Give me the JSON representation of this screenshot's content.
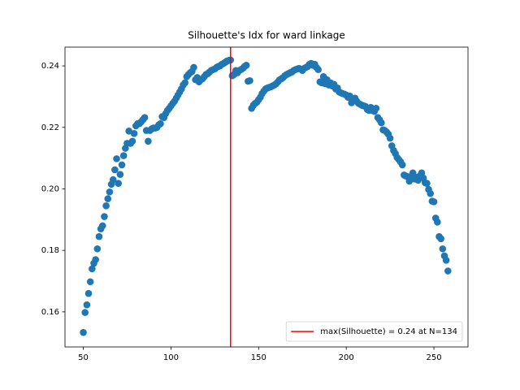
{
  "chart_data": {
    "type": "scatter",
    "title": "Silhouette's Idx for ward linkage",
    "x": [
      50,
      51,
      52,
      53,
      54,
      55,
      56,
      57,
      58,
      59,
      60,
      61,
      62,
      63,
      64,
      65,
      66,
      67,
      68,
      69,
      70,
      71,
      72,
      73,
      74,
      75,
      76,
      77,
      78,
      79,
      80,
      81,
      82,
      83,
      84,
      85,
      86,
      87,
      88,
      89,
      90,
      91,
      92,
      93,
      94,
      95,
      96,
      97,
      98,
      99,
      100,
      101,
      102,
      103,
      104,
      105,
      106,
      107,
      108,
      109,
      110,
      111,
      112,
      113,
      114,
      115,
      116,
      117,
      118,
      119,
      120,
      121,
      122,
      123,
      124,
      125,
      126,
      127,
      128,
      129,
      130,
      131,
      132,
      133,
      134,
      135,
      136,
      137,
      138,
      139,
      140,
      141,
      142,
      143,
      144,
      145,
      146,
      147,
      148,
      149,
      150,
      151,
      152,
      153,
      154,
      155,
      156,
      157,
      158,
      159,
      160,
      161,
      162,
      163,
      164,
      165,
      166,
      167,
      168,
      169,
      170,
      171,
      172,
      173,
      174,
      175,
      176,
      177,
      178,
      179,
      180,
      181,
      182,
      183,
      184,
      185,
      186,
      187,
      188,
      189,
      190,
      191,
      192,
      193,
      194,
      195,
      196,
      197,
      198,
      199,
      200,
      201,
      202,
      203,
      204,
      205,
      206,
      207,
      208,
      209,
      210,
      211,
      212,
      213,
      214,
      215,
      216,
      217,
      218,
      219,
      220,
      221,
      222,
      223,
      224,
      225,
      226,
      227,
      228,
      229,
      230,
      231,
      232,
      233,
      234,
      235,
      236,
      237,
      238,
      239,
      240,
      241,
      242,
      243,
      244,
      245,
      246,
      247,
      248,
      249,
      250,
      251,
      252,
      253,
      254,
      255,
      256,
      257,
      258
    ],
    "values": [
      0.1533,
      0.1598,
      0.1623,
      0.166,
      0.1698,
      0.174,
      0.1758,
      0.177,
      0.1805,
      0.1845,
      0.187,
      0.188,
      0.191,
      0.1945,
      0.1968,
      0.199,
      0.2015,
      0.203,
      0.2062,
      0.2098,
      0.2018,
      0.2047,
      0.2078,
      0.2108,
      0.2132,
      0.2148,
      0.2188,
      0.2148,
      0.2155,
      0.218,
      0.2205,
      0.2212,
      0.2212,
      0.2218,
      0.2225,
      0.2232,
      0.219,
      0.2155,
      0.219,
      0.2195,
      0.2198,
      0.2198,
      0.22,
      0.2208,
      0.2212,
      0.2235,
      0.2232,
      0.2245,
      0.2255,
      0.2262,
      0.227,
      0.2278,
      0.2285,
      0.2295,
      0.2305,
      0.2315,
      0.2325,
      0.2338,
      0.2345,
      0.2365,
      0.2372,
      0.2378,
      0.2382,
      0.2395,
      0.2355,
      0.2362,
      0.2348,
      0.2355,
      0.2358,
      0.2365,
      0.2372,
      0.2375,
      0.238,
      0.2385,
      0.2388,
      0.239,
      0.2395,
      0.2398,
      0.24,
      0.2405,
      0.2408,
      0.2412,
      0.2416,
      0.2418,
      0.2419,
      0.2368,
      0.2372,
      0.2385,
      0.2378,
      0.2385,
      0.2388,
      0.2392,
      0.2398,
      0.2402,
      0.235,
      0.2352,
      0.2262,
      0.2272,
      0.2278,
      0.2282,
      0.229,
      0.2298,
      0.231,
      0.2318,
      0.2325,
      0.2328,
      0.233,
      0.2332,
      0.2335,
      0.2338,
      0.2342,
      0.2348,
      0.2355,
      0.2358,
      0.2362,
      0.2368,
      0.2372,
      0.2375,
      0.2378,
      0.238,
      0.2385,
      0.2388,
      0.239,
      0.2392,
      0.239,
      0.2385,
      0.2392,
      0.2395,
      0.2398,
      0.2405,
      0.2408,
      0.2402,
      0.2405,
      0.2395,
      0.2388,
      0.2348,
      0.2345,
      0.2365,
      0.2342,
      0.2355,
      0.2338,
      0.2345,
      0.2335,
      0.234,
      0.2325,
      0.2328,
      0.2315,
      0.2312,
      0.231,
      0.2308,
      0.2305,
      0.2298,
      0.2302,
      0.228,
      0.229,
      0.2295,
      0.2285,
      0.2278,
      0.2275,
      0.2272,
      0.227,
      0.2268,
      0.2258,
      0.2255,
      0.2265,
      0.2255,
      0.2252,
      0.2262,
      0.2232,
      0.2225,
      0.2215,
      0.2192,
      0.219,
      0.2185,
      0.2178,
      0.2165,
      0.214,
      0.2125,
      0.2115,
      0.2102,
      0.2095,
      0.2088,
      0.2078,
      0.2045,
      0.2042,
      0.204,
      0.2025,
      0.2035,
      0.2052,
      0.2032,
      0.2038,
      0.2028,
      0.2042,
      0.2052,
      0.2035,
      0.202,
      0.2018,
      0.1998,
      0.1985,
      0.196,
      0.1958,
      0.1905,
      0.1892,
      0.1845,
      0.1838,
      0.1805,
      0.1782,
      0.1768,
      0.1733
    ],
    "color": "#1f77b4",
    "xlim": [
      39.55,
      269.45
    ],
    "xticks": [
      50,
      100,
      150,
      200,
      250
    ],
    "ylim": [
      0.1486,
      0.2461
    ],
    "yticks": [
      0.16,
      0.18,
      {
        "value": 0.2,
        "label": "0.20"
      },
      0.22,
      0.24
    ],
    "vline": {
      "x": 134,
      "color": "#ff0000",
      "label": "max(Silhouette) = 0.24 at N=134"
    },
    "legend": "lower right"
  }
}
